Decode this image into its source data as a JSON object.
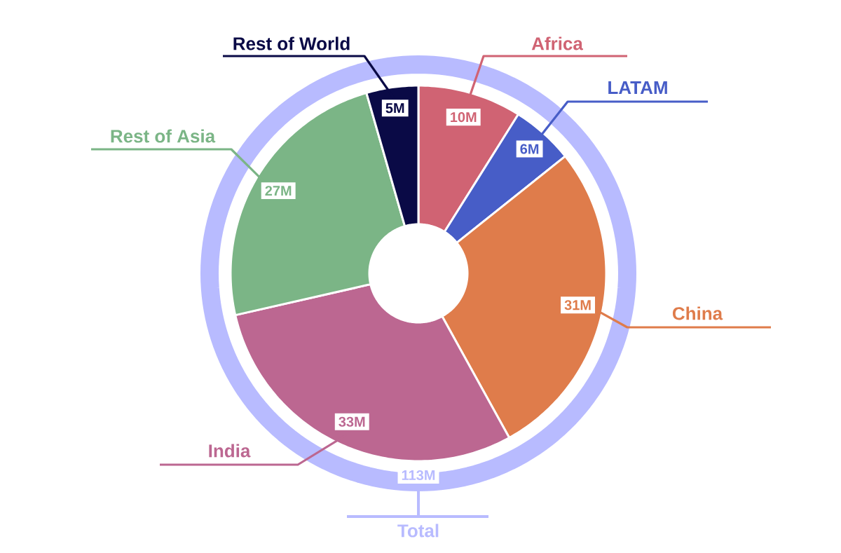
{
  "chart_data": {
    "type": "donut",
    "categories": [
      "Africa",
      "LATAM",
      "China",
      "India",
      "Rest of Asia",
      "Rest of World"
    ],
    "values": [
      10,
      6,
      31,
      33,
      27,
      5
    ],
    "colors": [
      "#d06373",
      "#475dc7",
      "#df7c4b",
      "#bc6791",
      "#7bb586",
      "#0a0a46"
    ],
    "value_labels": [
      "10M",
      "6M",
      "31M",
      "33M",
      "27M",
      "5M"
    ],
    "annotations": [
      "113M",
      "Total"
    ]
  }
}
